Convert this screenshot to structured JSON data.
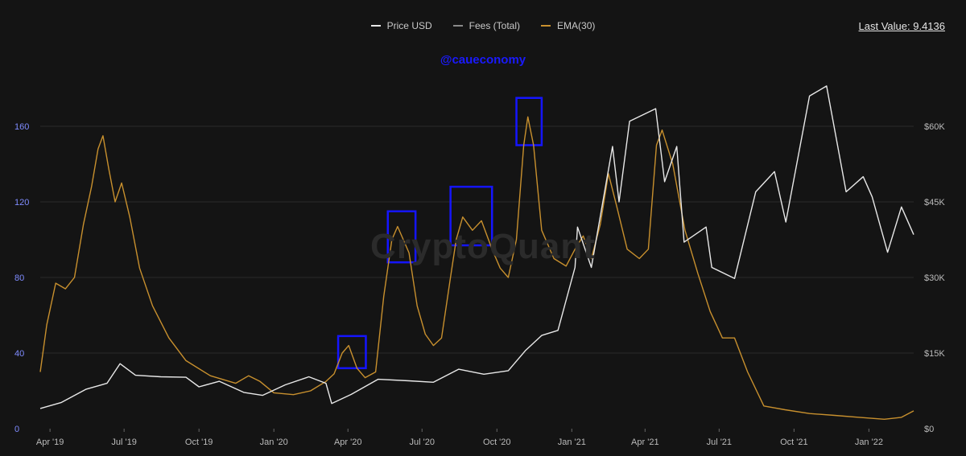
{
  "legend": {
    "price_label": "Price USD",
    "fees_label": "Fees (Total)",
    "ema_label": "EMA(30)"
  },
  "last_value_label": "Last Value: 9.4136",
  "watermark_handle": "@caueconomy",
  "logo_text": "CryptoQuant",
  "colors": {
    "price": "#e8e8e8",
    "fees": "#8a8a8a",
    "ema": "#c8902e",
    "highlight_box": "#1515ff",
    "left_axis": "#7f8cff",
    "right_axis": "#bbbbbb",
    "grid": "#2a2a2a",
    "background": "#141414"
  },
  "chart_data": {
    "type": "line",
    "x_unit": "month",
    "x_ticks": [
      {
        "label": "Apr '19",
        "month": "2019-04"
      },
      {
        "label": "Jul '19",
        "month": "2019-07"
      },
      {
        "label": "Oct '19",
        "month": "2019-10"
      },
      {
        "label": "Jan '20",
        "month": "2020-01"
      },
      {
        "label": "Apr '20",
        "month": "2020-04"
      },
      {
        "label": "Jul '20",
        "month": "2020-07"
      },
      {
        "label": "Oct '20",
        "month": "2020-10"
      },
      {
        "label": "Jan '21",
        "month": "2021-01"
      },
      {
        "label": "Apr '21",
        "month": "2021-04"
      },
      {
        "label": "Jul '21",
        "month": "2021-07"
      },
      {
        "label": "Oct '21",
        "month": "2021-10"
      },
      {
        "label": "Jan '22",
        "month": "2022-01"
      }
    ],
    "x_range": [
      "2019-03-20",
      "2022-02-25"
    ],
    "left_axis": {
      "ticks": [
        0,
        40,
        80,
        120,
        160
      ],
      "range": [
        0,
        180
      ]
    },
    "right_axis": {
      "ticks": [
        "$0",
        "$15K",
        "$30K",
        "$45K",
        "$60K"
      ],
      "tick_values": [
        0,
        15000,
        30000,
        45000,
        60000
      ],
      "range": [
        0,
        67500
      ]
    },
    "series": [
      {
        "name": "EMA(30)",
        "axis": "left",
        "points": [
          [
            "2019-03-20",
            30
          ],
          [
            "2019-03-28",
            55
          ],
          [
            "2019-04-08",
            77
          ],
          [
            "2019-04-20",
            74
          ],
          [
            "2019-05-01",
            80
          ],
          [
            "2019-05-12",
            108
          ],
          [
            "2019-05-22",
            128
          ],
          [
            "2019-05-30",
            148
          ],
          [
            "2019-06-05",
            155
          ],
          [
            "2019-06-12",
            138
          ],
          [
            "2019-06-20",
            120
          ],
          [
            "2019-06-28",
            130
          ],
          [
            "2019-07-08",
            112
          ],
          [
            "2019-07-20",
            85
          ],
          [
            "2019-08-05",
            65
          ],
          [
            "2019-08-25",
            48
          ],
          [
            "2019-09-15",
            36
          ],
          [
            "2019-10-15",
            28
          ],
          [
            "2019-11-15",
            24
          ],
          [
            "2019-12-01",
            28
          ],
          [
            "2019-12-15",
            25
          ],
          [
            "2020-01-01",
            19
          ],
          [
            "2020-01-25",
            18
          ],
          [
            "2020-02-15",
            20
          ],
          [
            "2020-03-05",
            25
          ],
          [
            "2020-03-15",
            29
          ],
          [
            "2020-03-25",
            40
          ],
          [
            "2020-04-02",
            44
          ],
          [
            "2020-04-12",
            32
          ],
          [
            "2020-04-22",
            27
          ],
          [
            "2020-05-05",
            30
          ],
          [
            "2020-05-15",
            70
          ],
          [
            "2020-05-25",
            100
          ],
          [
            "2020-06-01",
            107
          ],
          [
            "2020-06-15",
            93
          ],
          [
            "2020-06-25",
            65
          ],
          [
            "2020-07-05",
            50
          ],
          [
            "2020-07-15",
            44
          ],
          [
            "2020-07-25",
            48
          ],
          [
            "2020-08-05",
            80
          ],
          [
            "2020-08-12",
            100
          ],
          [
            "2020-08-20",
            112
          ],
          [
            "2020-09-01",
            105
          ],
          [
            "2020-09-12",
            110
          ],
          [
            "2020-09-25",
            95
          ],
          [
            "2020-10-05",
            85
          ],
          [
            "2020-10-15",
            80
          ],
          [
            "2020-10-25",
            100
          ],
          [
            "2020-11-03",
            150
          ],
          [
            "2020-11-08",
            165
          ],
          [
            "2020-11-15",
            150
          ],
          [
            "2020-11-25",
            105
          ],
          [
            "2020-12-10",
            90
          ],
          [
            "2020-12-25",
            86
          ],
          [
            "2021-01-05",
            95
          ],
          [
            "2021-01-15",
            102
          ],
          [
            "2021-01-25",
            90
          ],
          [
            "2021-02-05",
            108
          ],
          [
            "2021-02-15",
            135
          ],
          [
            "2021-02-25",
            118
          ],
          [
            "2021-03-10",
            95
          ],
          [
            "2021-03-25",
            90
          ],
          [
            "2021-04-05",
            95
          ],
          [
            "2021-04-15",
            150
          ],
          [
            "2021-04-22",
            158
          ],
          [
            "2021-05-05",
            140
          ],
          [
            "2021-05-20",
            105
          ],
          [
            "2021-06-05",
            82
          ],
          [
            "2021-06-20",
            62
          ],
          [
            "2021-07-05",
            48
          ],
          [
            "2021-07-20",
            48
          ],
          [
            "2021-08-05",
            30
          ],
          [
            "2021-08-25",
            12
          ],
          [
            "2021-09-20",
            10
          ],
          [
            "2021-10-20",
            8
          ],
          [
            "2021-11-20",
            7
          ],
          [
            "2021-12-20",
            6
          ],
          [
            "2022-01-20",
            5
          ],
          [
            "2022-02-10",
            6
          ],
          [
            "2022-02-25",
            9.4
          ]
        ]
      },
      {
        "name": "Price USD",
        "axis": "right",
        "points": [
          [
            "2019-03-20",
            4000
          ],
          [
            "2019-04-15",
            5200
          ],
          [
            "2019-05-15",
            7800
          ],
          [
            "2019-06-10",
            9000
          ],
          [
            "2019-06-26",
            12900
          ],
          [
            "2019-07-15",
            10600
          ],
          [
            "2019-08-15",
            10300
          ],
          [
            "2019-09-15",
            10200
          ],
          [
            "2019-10-01",
            8300
          ],
          [
            "2019-10-26",
            9400
          ],
          [
            "2019-11-25",
            7200
          ],
          [
            "2019-12-18",
            6600
          ],
          [
            "2020-01-15",
            8700
          ],
          [
            "2020-02-13",
            10300
          ],
          [
            "2020-03-05",
            9000
          ],
          [
            "2020-03-12",
            5000
          ],
          [
            "2020-04-05",
            6800
          ],
          [
            "2020-05-08",
            9800
          ],
          [
            "2020-06-15",
            9500
          ],
          [
            "2020-07-15",
            9200
          ],
          [
            "2020-08-15",
            11800
          ],
          [
            "2020-09-15",
            10800
          ],
          [
            "2020-10-15",
            11500
          ],
          [
            "2020-11-05",
            15500
          ],
          [
            "2020-11-25",
            18500
          ],
          [
            "2020-12-15",
            19500
          ],
          [
            "2021-01-05",
            32000
          ],
          [
            "2021-01-08",
            40000
          ],
          [
            "2021-01-25",
            32000
          ],
          [
            "2021-02-20",
            56000
          ],
          [
            "2021-02-28",
            45000
          ],
          [
            "2021-03-13",
            61000
          ],
          [
            "2021-04-14",
            63500
          ],
          [
            "2021-04-25",
            49000
          ],
          [
            "2021-05-10",
            56000
          ],
          [
            "2021-05-19",
            37000
          ],
          [
            "2021-06-15",
            40000
          ],
          [
            "2021-06-22",
            32000
          ],
          [
            "2021-07-20",
            29800
          ],
          [
            "2021-08-15",
            47000
          ],
          [
            "2021-09-07",
            51000
          ],
          [
            "2021-09-21",
            41000
          ],
          [
            "2021-10-20",
            66000
          ],
          [
            "2021-11-10",
            68000
          ],
          [
            "2021-11-26",
            54000
          ],
          [
            "2021-12-04",
            47000
          ],
          [
            "2021-12-25",
            50000
          ],
          [
            "2022-01-05",
            46000
          ],
          [
            "2022-01-24",
            35000
          ],
          [
            "2022-02-10",
            44000
          ],
          [
            "2022-02-25",
            38500
          ]
        ]
      }
    ],
    "highlights": [
      {
        "x0": "2020-03-20",
        "x1": "2020-04-23",
        "y0": 32,
        "y1": 49
      },
      {
        "x0": "2020-05-20",
        "x1": "2020-06-23",
        "y0": 88,
        "y1": 115
      },
      {
        "x0": "2020-08-05",
        "x1": "2020-09-25",
        "y0": 97,
        "y1": 128
      },
      {
        "x0": "2020-10-25",
        "x1": "2020-11-25",
        "y0": 150,
        "y1": 175
      }
    ],
    "grid": true,
    "legend_position": "top-center"
  }
}
